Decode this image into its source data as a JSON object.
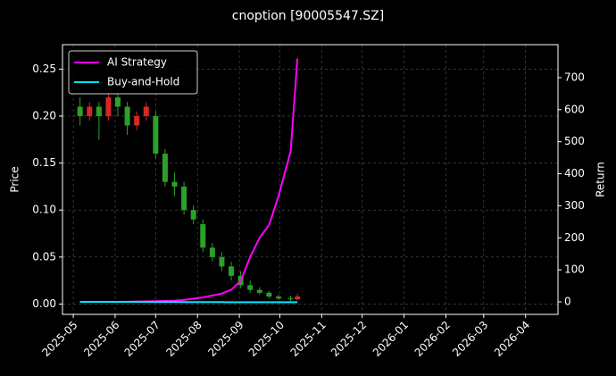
{
  "chart_data": {
    "type": "candlestick",
    "title": "cnoption [90005547.SZ]",
    "y_label": "Price",
    "y2_label": "Return",
    "x": [
      "2025-05-06",
      "2025-05-13",
      "2025-05-20",
      "2025-05-27",
      "2025-06-03",
      "2025-06-10",
      "2025-06-17",
      "2025-06-24",
      "2025-07-01",
      "2025-07-08",
      "2025-07-15",
      "2025-07-22",
      "2025-07-29",
      "2025-08-05",
      "2025-08-12",
      "2025-08-19",
      "2025-08-26",
      "2025-09-02",
      "2025-09-09",
      "2025-09-16",
      "2025-09-23",
      "2025-09-30",
      "2025-10-09",
      "2025-10-14"
    ],
    "open": [
      0.21,
      0.2,
      0.21,
      0.2,
      0.22,
      0.21,
      0.19,
      0.2,
      0.2,
      0.16,
      0.13,
      0.125,
      0.1,
      0.085,
      0.06,
      0.05,
      0.04,
      0.03,
      0.02,
      0.015,
      0.012,
      0.008,
      0.006,
      0.005
    ],
    "high": [
      0.22,
      0.215,
      0.215,
      0.225,
      0.225,
      0.215,
      0.205,
      0.215,
      0.205,
      0.165,
      0.14,
      0.13,
      0.105,
      0.09,
      0.065,
      0.055,
      0.045,
      0.035,
      0.025,
      0.018,
      0.014,
      0.01,
      0.009,
      0.011
    ],
    "low": [
      0.19,
      0.195,
      0.175,
      0.195,
      0.2,
      0.18,
      0.185,
      0.195,
      0.155,
      0.125,
      0.115,
      0.095,
      0.085,
      0.055,
      0.045,
      0.035,
      0.025,
      0.017,
      0.012,
      0.01,
      0.006,
      0.004,
      0.003,
      0.004
    ],
    "close": [
      0.2,
      0.21,
      0.2,
      0.22,
      0.21,
      0.19,
      0.2,
      0.21,
      0.16,
      0.13,
      0.125,
      0.1,
      0.09,
      0.06,
      0.05,
      0.04,
      0.03,
      0.02,
      0.015,
      0.012,
      0.008,
      0.006,
      0.005,
      0.008
    ],
    "up_color": "#d62728",
    "down_color": "#2ca02c",
    "series": [
      {
        "name": "AI Strategy",
        "color": "#ff00ff",
        "axis": "y2",
        "values": [
          0,
          0,
          0,
          0,
          0,
          0.5,
          1,
          1.5,
          2,
          3,
          4,
          6,
          10,
          14,
          20,
          26,
          38,
          65,
          140,
          200,
          240,
          330,
          470,
          760
        ]
      },
      {
        "name": "Buy-and-Hold",
        "color": "#00e5ff",
        "axis": "y2",
        "values": [
          0,
          0,
          0,
          0.1,
          0.1,
          0,
          0,
          0,
          -0.2,
          -0.4,
          -0.4,
          -0.5,
          -0.6,
          -0.7,
          -0.8,
          -0.8,
          -0.9,
          -0.9,
          -0.9,
          -1,
          -1,
          -1,
          -1,
          -1
        ]
      }
    ],
    "xlim": [
      "2025-04-23",
      "2026-04-25"
    ],
    "xticks": [
      {
        "value": "2025-05-01",
        "label": "2025-05"
      },
      {
        "value": "2025-06-01",
        "label": "2025-06"
      },
      {
        "value": "2025-07-01",
        "label": "2025-07"
      },
      {
        "value": "2025-08-01",
        "label": "2025-08"
      },
      {
        "value": "2025-09-01",
        "label": "2025-09"
      },
      {
        "value": "2025-10-01",
        "label": "2025-10"
      },
      {
        "value": "2025-11-01",
        "label": "2025-11"
      },
      {
        "value": "2025-12-01",
        "label": "2025-12"
      },
      {
        "value": "2026-01-01",
        "label": "2026-01"
      },
      {
        "value": "2026-02-01",
        "label": "2026-02"
      },
      {
        "value": "2026-03-01",
        "label": "2026-03"
      },
      {
        "value": "2026-04-01",
        "label": "2026-04"
      }
    ],
    "ylim": [
      -0.011,
      0.276
    ],
    "yticks": [
      {
        "value": 0,
        "label": "0.00"
      },
      {
        "value": 0.05,
        "label": "0.05"
      },
      {
        "value": 0.1,
        "label": "0.10"
      },
      {
        "value": 0.15,
        "label": "0.15"
      },
      {
        "value": 0.2,
        "label": "0.20"
      },
      {
        "value": 0.25,
        "label": "0.25"
      }
    ],
    "y2lim": [
      -39,
      803
    ],
    "y2ticks": [
      0,
      100,
      200,
      300,
      400,
      500,
      600,
      700
    ],
    "grid": true,
    "legend": "upper left"
  }
}
